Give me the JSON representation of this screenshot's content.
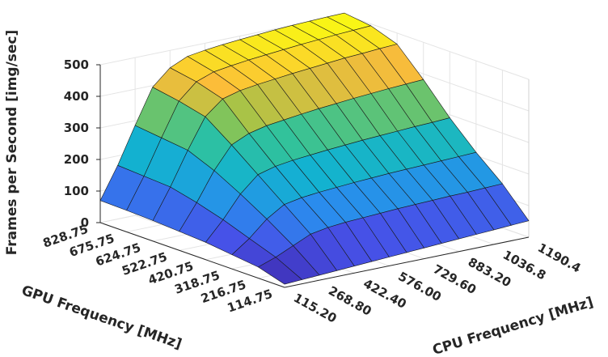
{
  "chart_data": {
    "type": "surface3d",
    "title": "",
    "zlabel": "Frames per Second [img/sec]",
    "ylabel": "GPU Frequency [MHz]",
    "xlabel": "CPU Frequency [MHz]",
    "zlim": [
      0,
      500
    ],
    "z_ticks": [
      "500",
      "400",
      "300",
      "200",
      "100",
      "0"
    ],
    "gpu_ticks": [
      "828.75",
      "675.75",
      "624.75",
      "522.75",
      "420.75",
      "318.75",
      "216.75",
      "114.75"
    ],
    "cpu_ticks": [
      "115.20",
      "268.80",
      "422.40",
      "576.00",
      "729.60",
      "883.20",
      "1036.8",
      "1190.4"
    ],
    "gpu_frequencies": [
      114.75,
      216.75,
      318.75,
      420.75,
      522.75,
      624.75,
      675.75,
      828.75
    ],
    "cpu_frequencies": [
      115.2,
      191.1,
      268.8,
      345.6,
      422.4,
      499.2,
      576.0,
      652.8,
      729.6,
      806.4,
      883.2,
      960.0,
      1036.8,
      1113.6,
      1190.4
    ],
    "fps_by_gpu_row": [
      [
        10,
        13,
        16,
        19,
        22,
        25,
        28,
        31,
        34,
        37,
        40,
        43,
        46,
        49,
        52
      ],
      [
        35,
        55,
        80,
        105,
        115,
        120,
        123,
        126,
        129,
        131,
        133,
        135,
        136,
        138,
        140
      ],
      [
        45,
        85,
        135,
        170,
        180,
        186,
        190,
        194,
        197,
        200,
        202,
        204,
        206,
        208,
        210
      ],
      [
        55,
        115,
        185,
        235,
        250,
        258,
        263,
        268,
        272,
        276,
        279,
        282,
        285,
        287,
        290
      ],
      [
        60,
        140,
        230,
        300,
        325,
        338,
        345,
        352,
        358,
        363,
        368,
        372,
        376,
        379,
        382
      ],
      [
        65,
        160,
        265,
        360,
        405,
        420,
        428,
        434,
        440,
        445,
        450,
        455,
        458,
        462,
        465
      ],
      [
        68,
        165,
        275,
        380,
        430,
        450,
        458,
        465,
        470,
        475,
        480,
        484,
        488,
        491,
        494
      ],
      [
        70,
        170,
        285,
        395,
        445,
        470,
        478,
        484,
        489,
        493,
        497,
        500,
        502,
        504,
        505
      ]
    ],
    "colormap": "parula",
    "grid": true
  }
}
